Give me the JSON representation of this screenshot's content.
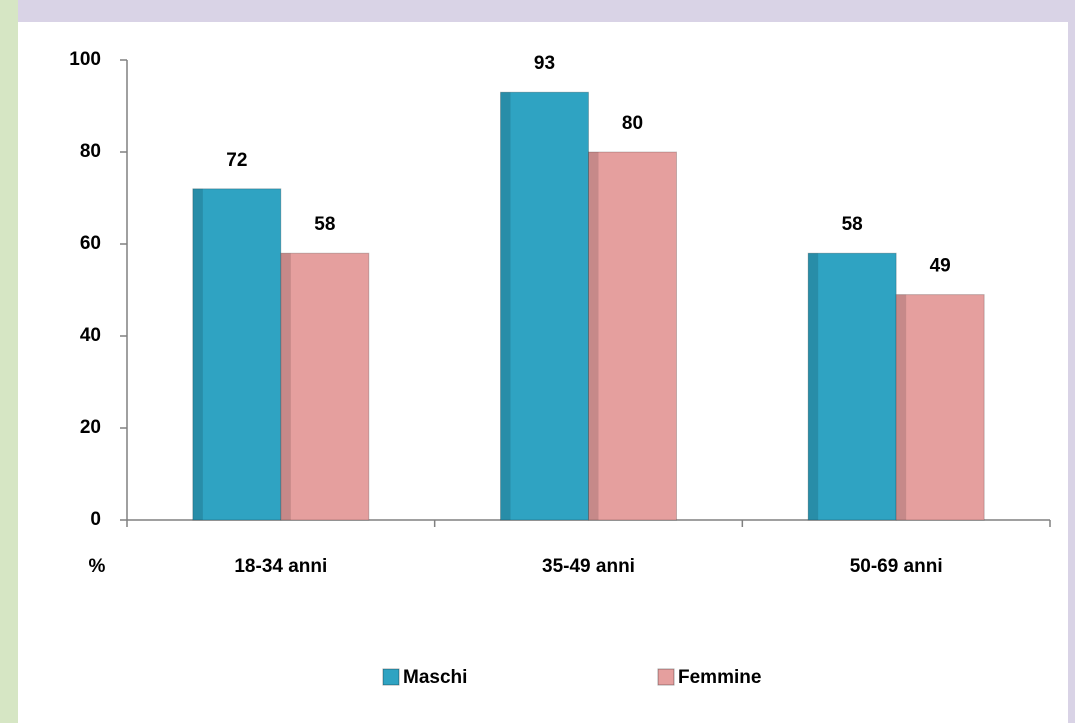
{
  "chart_data": {
    "type": "bar",
    "y_label": "%",
    "categories": [
      "18-34 anni",
      "35-49 anni",
      "50-69 anni"
    ],
    "series": [
      {
        "name": "Maschi",
        "color": "#2fa3c2",
        "values": [
          72,
          93,
          58
        ]
      },
      {
        "name": "Femmine",
        "color": "#e59f9e",
        "values": [
          58,
          80,
          49
        ]
      }
    ],
    "ylim": [
      0,
      100
    ],
    "yticks": [
      0,
      20,
      40,
      60,
      80,
      100
    ],
    "grid": false,
    "legend": "bottom"
  }
}
